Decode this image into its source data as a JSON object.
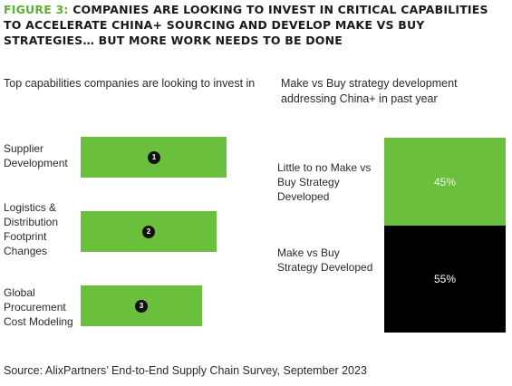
{
  "figure": {
    "label": "FIGURE 3:",
    "title": "COMPANIES ARE LOOKING TO INVEST IN CRITICAL CAPABILITIES TO ACCELERATE CHINA+ SOURCING AND DEVELOP MAKE VS BUY STRATEGIES… BUT MORE WORK NEEDS TO BE DONE",
    "source": "Source: AlixPartners’ End-to-End Supply Chain Survey, September 2023"
  },
  "colors": {
    "accent_green": "#6abf3c",
    "dark": "#111111",
    "title_green": "#5cb037"
  },
  "chart_data": [
    {
      "type": "bar",
      "orientation": "horizontal",
      "title": "Top capabilities companies are looking to invest in",
      "categories": [
        "Supplier Development",
        "Logistics & Distribution Footprint Changes",
        "Global Procurement Cost Modeling"
      ],
      "ranks": [
        "1",
        "2",
        "3"
      ],
      "values": [
        3,
        2.8,
        2.5
      ],
      "value_axis_shown": false,
      "color": "#6abf3c"
    },
    {
      "type": "bar",
      "stacked": true,
      "title": "Make vs Buy strategy development addressing China+ in past year",
      "series": [
        {
          "name": "Little to no Make vs Buy Strategy Developed",
          "value": 45,
          "label": "45%",
          "color": "#6abf3c"
        },
        {
          "name": "Make vs Buy Strategy Developed",
          "value": 55,
          "label": "55%",
          "color": "#000000"
        }
      ],
      "unit": "%"
    }
  ]
}
